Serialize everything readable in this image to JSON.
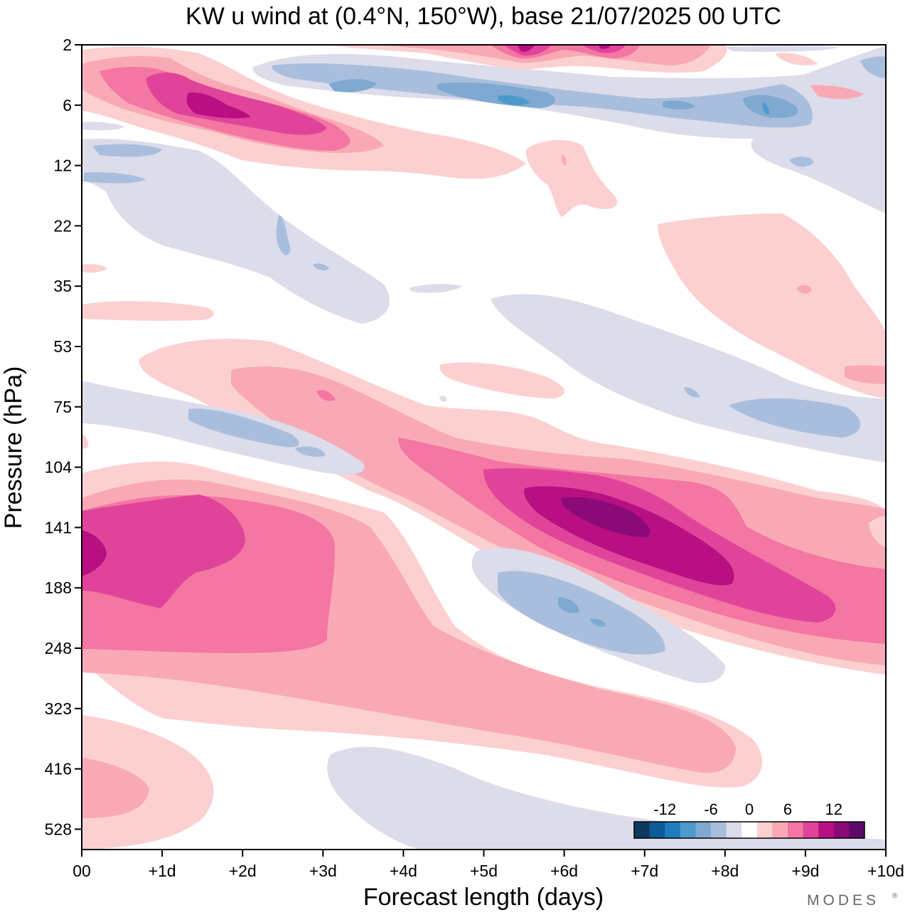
{
  "chart_data": {
    "type": "heatmap",
    "title": "KW u wind at (0.4°N, 150°W),  base 21/07/2025  00 UTC",
    "xlabel": "Forecast length (days)",
    "ylabel": "Pressure (hPa)",
    "x_ticks": [
      "00",
      "+1d",
      "+2d",
      "+3d",
      "+4d",
      "+5d",
      "+6d",
      "+7d",
      "+8d",
      "+9d",
      "+10d"
    ],
    "y_ticks": [
      "2",
      "6",
      "12",
      "22",
      "35",
      "53",
      "75",
      "104",
      "141",
      "188",
      "248",
      "323",
      "416",
      "528"
    ],
    "xlim_days": [
      0,
      10
    ],
    "y_axis_scale": "log-pressure, 2 hPa at top",
    "colorbar": {
      "tick_labels": [
        "-12",
        "-6",
        "0",
        "6",
        "12"
      ],
      "levels": [
        -14,
        -12,
        -10,
        -8,
        -6,
        -4,
        -2,
        2,
        4,
        6,
        8,
        10,
        12,
        14
      ],
      "colors": [
        "#0c3a5e",
        "#0d5b96",
        "#1e7bbd",
        "#4e99cc",
        "#7fa9d0",
        "#a9bedd",
        "#dcdcea",
        "#ffffff",
        "#fcd0d0",
        "#f9a9b6",
        "#f476a2",
        "#e0449a",
        "#b80f82",
        "#8a0a77",
        "#5c0a6a"
      ]
    },
    "features": [
      {
        "name": "upper-positive-descending-band",
        "x_days": [
          0.1,
          3.5
        ],
        "pressure_hPa": [
          3,
          12
        ],
        "peak_u": 12
      },
      {
        "name": "upper-negative-band",
        "x_days": [
          2.2,
          10
        ],
        "pressure_hPa": [
          3,
          10
        ],
        "peak_u": -10
      },
      {
        "name": "stratospheric-top-positive",
        "x_days": [
          4,
          7
        ],
        "pressure_hPa": [
          2,
          3
        ],
        "peak_u": 14
      },
      {
        "name": "lower-strat-negative",
        "x_days": [
          0,
          4
        ],
        "pressure_hPa": [
          8,
          40
        ],
        "peak_u": -6
      },
      {
        "name": "mid-negative-right",
        "x_days": [
          5.2,
          10
        ],
        "pressure_hPa": [
          35,
          90
        ],
        "peak_u": -6
      },
      {
        "name": "tropopause-positive-descending-jet",
        "x_days": [
          0.8,
          10
        ],
        "pressure_hPa": [
          50,
          250
        ],
        "peak_u": 14
      },
      {
        "name": "upper-trop-positive-left",
        "x_days": [
          0,
          4.5
        ],
        "pressure_hPa": [
          100,
          400
        ],
        "peak_u": 10
      },
      {
        "name": "negative-lens",
        "x_days": [
          4.8,
          8
        ],
        "pressure_hPa": [
          160,
          260
        ],
        "peak_u": -8
      },
      {
        "name": "lower-trop-negative",
        "x_days": [
          3,
          10
        ],
        "pressure_hPa": [
          360,
          600
        ],
        "peak_u": -4
      },
      {
        "name": "lower-left-positive",
        "x_days": [
          0,
          1.7
        ],
        "pressure_hPa": [
          300,
          600
        ],
        "peak_u": 6
      }
    ]
  },
  "branding": {
    "logo_text": "MODES",
    "logo_mark": "®"
  }
}
